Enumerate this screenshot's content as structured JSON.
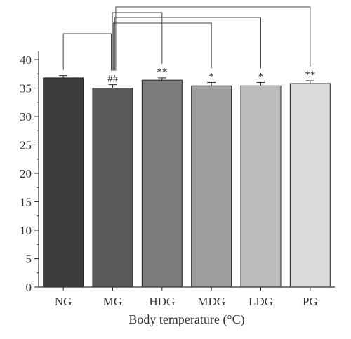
{
  "chart_data": {
    "type": "bar",
    "xlabel": "Body temperature (°C)",
    "ylabel": "",
    "categories": [
      "NG",
      "MG",
      "HDG",
      "MDG",
      "LDG",
      "PG"
    ],
    "values": [
      36.8,
      35.0,
      36.4,
      35.4,
      35.4,
      35.8
    ],
    "errors": [
      0.4,
      0.6,
      0.4,
      0.6,
      0.6,
      0.5
    ],
    "significance": [
      "",
      "##",
      "**",
      "*",
      "*",
      "**"
    ],
    "bar_colors": [
      "#3b3b3b",
      "#595959",
      "#7c7c7c",
      "#9d9d9d",
      "#bcbcbc",
      "#dcdcdc"
    ],
    "ylim": [
      0,
      40
    ],
    "yticks": [
      0,
      5,
      10,
      15,
      20,
      25,
      30,
      35,
      40
    ],
    "comparison_brackets": [
      [
        "NG",
        "MG"
      ],
      [
        "MG",
        "HDG"
      ],
      [
        "MG",
        "MDG"
      ],
      [
        "MG",
        "LDG"
      ],
      [
        "MG",
        "PG"
      ]
    ],
    "grid": false
  }
}
